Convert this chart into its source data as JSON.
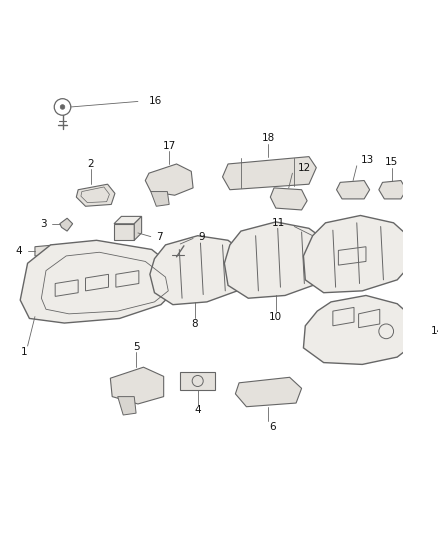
{
  "bg_color": "#ffffff",
  "line_color": "#666666",
  "fill_color": "#eeece8",
  "fill_dark": "#d8d5d0",
  "fill_mid": "#e4e1dc",
  "fig_width": 4.38,
  "fig_height": 5.33,
  "dpi": 100
}
